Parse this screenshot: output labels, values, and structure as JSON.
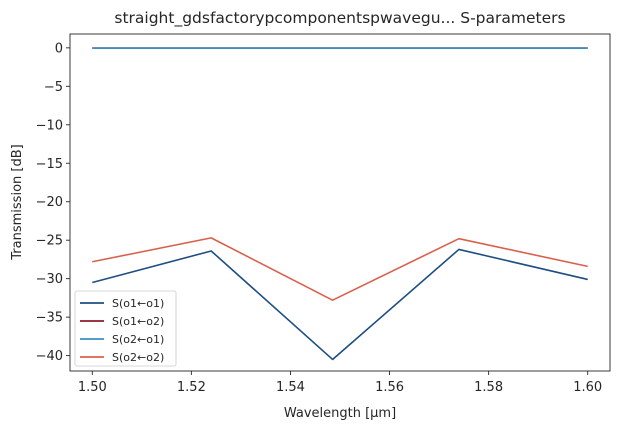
{
  "chart_data": {
    "type": "line",
    "title": "straight_gdsfactorypcomponentspwavegu... S-parameters",
    "xlabel": "Wavelength [μm]",
    "ylabel": "Transmission [dB]",
    "xlim": [
      1.4955,
      1.6045
    ],
    "ylim": [
      -42.0,
      1.8
    ],
    "xticks": [
      1.5,
      1.52,
      1.54,
      1.56,
      1.58,
      1.6
    ],
    "xtick_labels": [
      "1.50",
      "1.52",
      "1.54",
      "1.56",
      "1.58",
      "1.60"
    ],
    "yticks": [
      0,
      -5,
      -10,
      -15,
      -20,
      -25,
      -30,
      -35,
      -40
    ],
    "ytick_labels": [
      "0",
      "−5",
      "−10",
      "−15",
      "−20",
      "−25",
      "−30",
      "−35",
      "−40"
    ],
    "grid": false,
    "legend_position": "bottom-left",
    "x": [
      1.5,
      1.524,
      1.5485,
      1.574,
      1.6
    ],
    "series": [
      {
        "name": "S(o1←o1)",
        "color": "#1f4e82",
        "values": [
          -30.5,
          -26.4,
          -40.5,
          -26.2,
          -30.1
        ]
      },
      {
        "name": "S(o1←o2)",
        "color": "#8b1a2b",
        "values": [
          -0.02,
          -0.02,
          -0.02,
          -0.02,
          -0.02
        ]
      },
      {
        "name": "S(o2←o1)",
        "color": "#3b8ec2",
        "values": [
          -0.05,
          -0.05,
          -0.05,
          -0.05,
          -0.05
        ]
      },
      {
        "name": "S(o2←o2)",
        "color": "#d9604c",
        "values": [
          -27.8,
          -24.7,
          -32.8,
          -24.8,
          -28.4
        ]
      }
    ]
  }
}
